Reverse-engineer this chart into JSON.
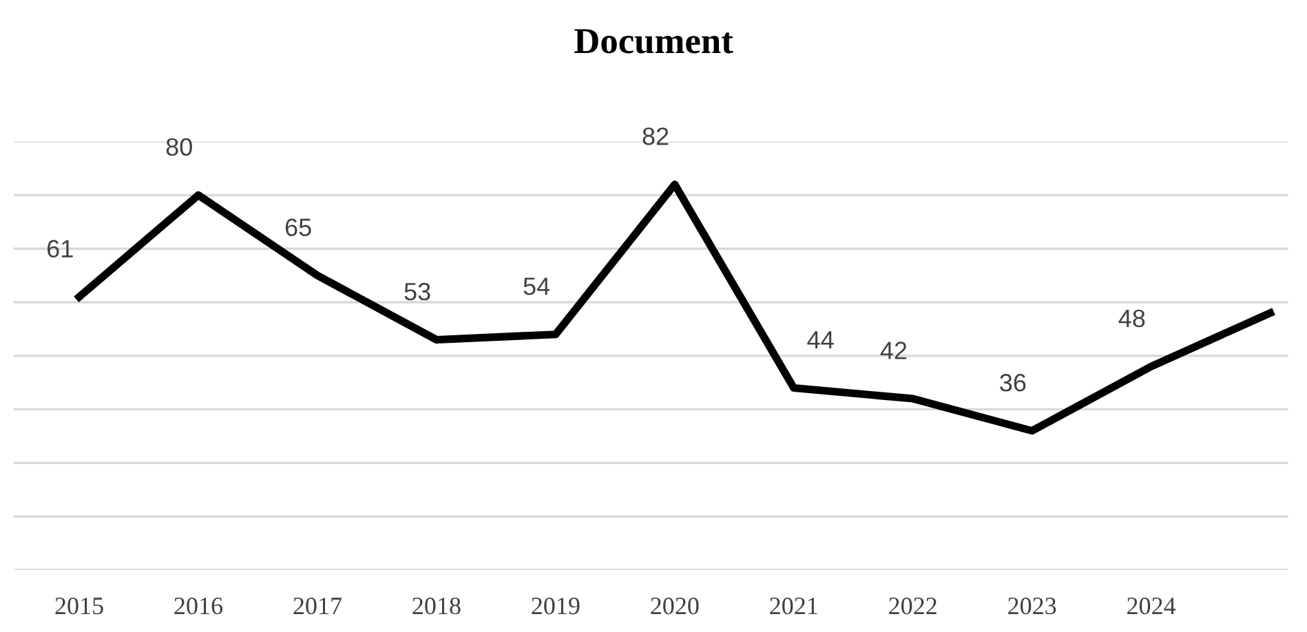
{
  "chart_data": {
    "type": "line",
    "title": "Document",
    "categories": [
      "2015",
      "2016",
      "2017",
      "2018",
      "2019",
      "2020",
      "2021",
      "2022",
      "2023",
      "2024",
      null
    ],
    "series": [
      {
        "color": "#000000",
        "values": [
          61,
          80,
          65,
          53,
          54,
          82,
          44,
          42,
          36,
          48,
          58
        ],
        "value_labels": [
          "61",
          "80",
          "65",
          "53",
          "54",
          "82",
          "44",
          "42",
          "36",
          "48",
          null
        ]
      }
    ],
    "ylim": [
      10,
      90
    ],
    "yticks": [
      {
        "value": 10,
        "label": null
      },
      {
        "value": 20,
        "label": null
      },
      {
        "value": 30,
        "label": null
      },
      {
        "value": 40,
        "label": null
      },
      {
        "value": 50,
        "label": null
      },
      {
        "value": 60,
        "label": null
      },
      {
        "value": 70,
        "label": null
      },
      {
        "value": 80,
        "label": null
      },
      {
        "value": 90,
        "label": null
      }
    ],
    "grid": "y",
    "tick_labels": "x",
    "marker": "none",
    "line_style": "solid"
  }
}
